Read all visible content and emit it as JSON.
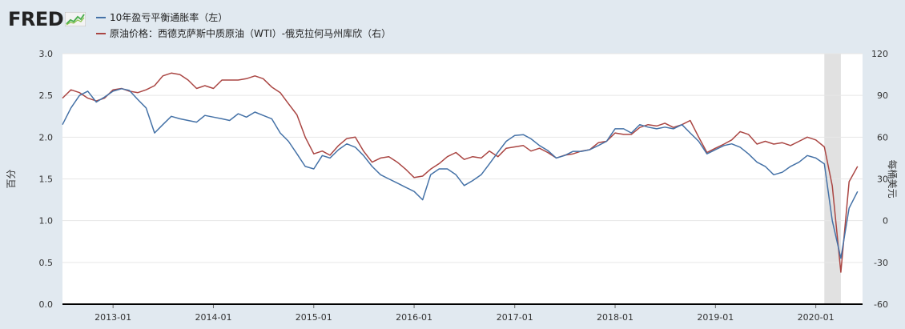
{
  "brand": {
    "name": "FRED"
  },
  "chart_data": {
    "type": "line",
    "title": "",
    "ylabel_left": "百分",
    "ylabel_right": "每桶美元",
    "ylim_left": [
      0.0,
      3.0
    ],
    "ylim_right": [
      -60,
      120
    ],
    "yticks_left": [
      "0.0",
      "0.5",
      "1.0",
      "1.5",
      "2.0",
      "2.5",
      "3.0"
    ],
    "yticks_right": [
      "-60",
      "-30",
      "0",
      "30",
      "60",
      "90",
      "120"
    ],
    "xlim": [
      "2012-07-01",
      "2020-06-19"
    ],
    "xticks": [
      "2013-01",
      "2014-01",
      "2015-01",
      "2016-01",
      "2017-01",
      "2018-01",
      "2019-01",
      "2020-01"
    ],
    "grid": true,
    "legend_position": "top-left",
    "recession_band": [
      "2020-02-01",
      "2020-04-01"
    ],
    "series": [
      {
        "name": "10年盈亏平衡通胀率（左）",
        "axis": "left",
        "color": "#4572a7",
        "x": [
          "2012-07-01",
          "2012-08-01",
          "2012-09-01",
          "2012-10-01",
          "2012-11-01",
          "2012-12-01",
          "2013-01-01",
          "2013-02-01",
          "2013-03-01",
          "2013-04-01",
          "2013-05-01",
          "2013-06-01",
          "2013-07-01",
          "2013-08-01",
          "2013-09-01",
          "2013-10-01",
          "2013-11-01",
          "2013-12-01",
          "2014-01-01",
          "2014-02-01",
          "2014-03-01",
          "2014-04-01",
          "2014-05-01",
          "2014-06-01",
          "2014-07-01",
          "2014-08-01",
          "2014-09-01",
          "2014-10-01",
          "2014-11-01",
          "2014-12-01",
          "2015-01-01",
          "2015-02-01",
          "2015-03-01",
          "2015-04-01",
          "2015-05-01",
          "2015-06-01",
          "2015-07-01",
          "2015-08-01",
          "2015-09-01",
          "2015-10-01",
          "2015-11-01",
          "2015-12-01",
          "2016-01-01",
          "2016-02-01",
          "2016-03-01",
          "2016-04-01",
          "2016-05-01",
          "2016-06-01",
          "2016-07-01",
          "2016-08-01",
          "2016-09-01",
          "2016-10-01",
          "2016-11-01",
          "2016-12-01",
          "2017-01-01",
          "2017-02-01",
          "2017-03-01",
          "2017-04-01",
          "2017-05-01",
          "2017-06-01",
          "2017-07-01",
          "2017-08-01",
          "2017-09-01",
          "2017-10-01",
          "2017-11-01",
          "2017-12-01",
          "2018-01-01",
          "2018-02-01",
          "2018-03-01",
          "2018-04-01",
          "2018-05-01",
          "2018-06-01",
          "2018-07-01",
          "2018-08-01",
          "2018-09-01",
          "2018-10-01",
          "2018-11-01",
          "2018-12-01",
          "2019-01-01",
          "2019-02-01",
          "2019-03-01",
          "2019-04-01",
          "2019-05-01",
          "2019-06-01",
          "2019-07-01",
          "2019-08-01",
          "2019-09-01",
          "2019-10-01",
          "2019-11-01",
          "2019-12-01",
          "2020-01-01",
          "2020-02-01",
          "2020-03-01",
          "2020-04-01",
          "2020-05-01",
          "2020-06-01"
        ],
        "values": [
          2.15,
          2.35,
          2.5,
          2.55,
          2.42,
          2.48,
          2.55,
          2.58,
          2.56,
          2.45,
          2.35,
          2.05,
          2.15,
          2.25,
          2.22,
          2.2,
          2.18,
          2.26,
          2.24,
          2.22,
          2.2,
          2.28,
          2.24,
          2.3,
          2.26,
          2.22,
          2.05,
          1.95,
          1.8,
          1.65,
          1.62,
          1.78,
          1.75,
          1.85,
          1.92,
          1.88,
          1.78,
          1.65,
          1.55,
          1.5,
          1.45,
          1.4,
          1.35,
          1.25,
          1.55,
          1.62,
          1.62,
          1.55,
          1.42,
          1.48,
          1.55,
          1.68,
          1.82,
          1.95,
          2.02,
          2.03,
          1.98,
          1.9,
          1.84,
          1.75,
          1.78,
          1.83,
          1.83,
          1.85,
          1.9,
          1.95,
          2.1,
          2.1,
          2.05,
          2.15,
          2.12,
          2.1,
          2.12,
          2.1,
          2.15,
          2.05,
          1.95,
          1.8,
          1.85,
          1.9,
          1.92,
          1.88,
          1.8,
          1.7,
          1.65,
          1.55,
          1.58,
          1.65,
          1.7,
          1.78,
          1.75,
          1.68,
          1.0,
          0.55,
          1.15,
          1.35
        ]
      },
      {
        "name": "原油价格：西德克萨斯中质原油（WTI）-俄克拉何马州库欣（右）",
        "axis": "right",
        "color": "#aa4643",
        "x": [
          "2012-07-01",
          "2012-08-01",
          "2012-09-01",
          "2012-10-01",
          "2012-11-01",
          "2012-12-01",
          "2013-01-01",
          "2013-02-01",
          "2013-03-01",
          "2013-04-01",
          "2013-05-01",
          "2013-06-01",
          "2013-07-01",
          "2013-08-01",
          "2013-09-01",
          "2013-10-01",
          "2013-11-01",
          "2013-12-01",
          "2014-01-01",
          "2014-02-01",
          "2014-03-01",
          "2014-04-01",
          "2014-05-01",
          "2014-06-01",
          "2014-07-01",
          "2014-08-01",
          "2014-09-01",
          "2014-10-01",
          "2014-11-01",
          "2014-12-01",
          "2015-01-01",
          "2015-02-01",
          "2015-03-01",
          "2015-04-01",
          "2015-05-01",
          "2015-06-01",
          "2015-07-01",
          "2015-08-01",
          "2015-09-01",
          "2015-10-01",
          "2015-11-01",
          "2015-12-01",
          "2016-01-01",
          "2016-02-01",
          "2016-03-01",
          "2016-04-01",
          "2016-05-01",
          "2016-06-01",
          "2016-07-01",
          "2016-08-01",
          "2016-09-01",
          "2016-10-01",
          "2016-11-01",
          "2016-12-01",
          "2017-01-01",
          "2017-02-01",
          "2017-03-01",
          "2017-04-01",
          "2017-05-01",
          "2017-06-01",
          "2017-07-01",
          "2017-08-01",
          "2017-09-01",
          "2017-10-01",
          "2017-11-01",
          "2017-12-01",
          "2018-01-01",
          "2018-02-01",
          "2018-03-01",
          "2018-04-01",
          "2018-05-01",
          "2018-06-01",
          "2018-07-01",
          "2018-08-01",
          "2018-09-01",
          "2018-10-01",
          "2018-11-01",
          "2018-12-01",
          "2019-01-01",
          "2019-02-01",
          "2019-03-01",
          "2019-04-01",
          "2019-05-01",
          "2019-06-01",
          "2019-07-01",
          "2019-08-01",
          "2019-09-01",
          "2019-10-01",
          "2019-11-01",
          "2019-12-01",
          "2020-01-01",
          "2020-02-01",
          "2020-03-01",
          "2020-04-01",
          "2020-05-01",
          "2020-06-01"
        ],
        "values": [
          88,
          94,
          92,
          88,
          86,
          88,
          94,
          95,
          93,
          92,
          94,
          97,
          104,
          106,
          105,
          101,
          95,
          97,
          95,
          101,
          101,
          101,
          102,
          104,
          102,
          96,
          92,
          84,
          76,
          60,
          48,
          50,
          47,
          54,
          59,
          60,
          50,
          42,
          45,
          46,
          42,
          37,
          31,
          32,
          37,
          41,
          46,
          49,
          44,
          46,
          45,
          50,
          46,
          52,
          53,
          54,
          50,
          52,
          49,
          45,
          47,
          48,
          50,
          51,
          56,
          57,
          63,
          62,
          62,
          67,
          69,
          68,
          70,
          67,
          69,
          72,
          60,
          49,
          52,
          55,
          58,
          64,
          62,
          55,
          57,
          55,
          56,
          54,
          57,
          60,
          58,
          53,
          25,
          -37,
          28,
          39
        ]
      }
    ]
  }
}
